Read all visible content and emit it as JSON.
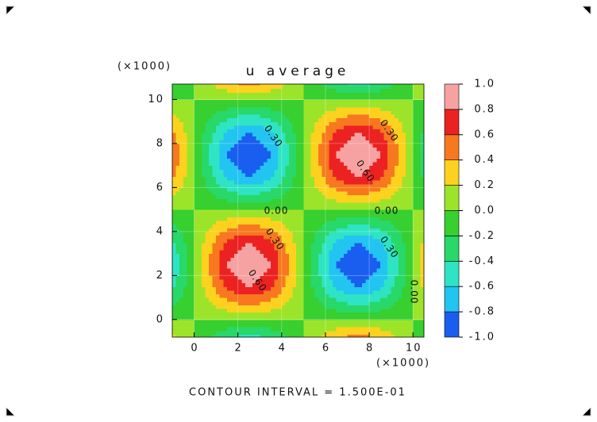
{
  "chart_data": {
    "type": "contour",
    "title": "u average",
    "y_multiplier_label": "(×1000)",
    "x_multiplier_label": "(×1000)",
    "footer": "CONTOUR INTERVAL = 1.500E-01",
    "x": [
      -1.5,
      -0.5,
      0.5,
      1.5,
      2.5,
      3.5,
      4.5,
      5.5,
      6.5,
      7.5,
      8.5,
      9.5,
      10.5
    ],
    "y": [
      -1.5,
      -0.5,
      0.5,
      1.5,
      2.5,
      3.5,
      4.5,
      5.5,
      6.5,
      7.5,
      8.5,
      9.5,
      10.5,
      11.5
    ],
    "z": [
      [
        0.66,
        0.25,
        -0.25,
        -0.66,
        -0.81,
        -0.66,
        -0.25,
        0.25,
        0.66,
        0.81,
        0.66,
        0.25,
        -0.25
      ],
      [
        0.25,
        0.1,
        -0.1,
        -0.25,
        -0.31,
        -0.25,
        -0.1,
        0.1,
        0.25,
        0.31,
        0.25,
        0.1,
        -0.1
      ],
      [
        -0.25,
        -0.1,
        0.1,
        0.25,
        0.31,
        0.25,
        0.1,
        -0.1,
        -0.25,
        -0.31,
        -0.25,
        -0.1,
        0.1
      ],
      [
        -0.66,
        -0.25,
        0.25,
        0.66,
        0.81,
        0.66,
        0.25,
        -0.25,
        -0.66,
        -0.81,
        -0.66,
        -0.25,
        0.25
      ],
      [
        -0.81,
        -0.31,
        0.31,
        0.81,
        1,
        0.81,
        0.31,
        -0.31,
        -0.81,
        -1,
        -0.81,
        -0.31,
        0.31
      ],
      [
        -0.66,
        -0.25,
        0.25,
        0.66,
        0.81,
        0.66,
        0.25,
        -0.25,
        -0.66,
        -0.81,
        -0.66,
        -0.25,
        0.25
      ],
      [
        -0.25,
        -0.1,
        0.1,
        0.25,
        0.31,
        0.25,
        0.1,
        -0.1,
        -0.25,
        -0.31,
        -0.25,
        -0.1,
        0.1
      ],
      [
        0.25,
        0.1,
        -0.1,
        -0.25,
        -0.31,
        -0.25,
        -0.1,
        0.1,
        0.25,
        0.31,
        0.25,
        0.1,
        -0.1
      ],
      [
        0.66,
        0.25,
        -0.25,
        -0.66,
        -0.81,
        -0.66,
        -0.25,
        0.25,
        0.66,
        0.81,
        0.66,
        0.25,
        -0.25
      ],
      [
        0.81,
        0.31,
        -0.31,
        -0.81,
        -1,
        -0.81,
        -0.31,
        0.31,
        0.81,
        1,
        0.81,
        0.31,
        -0.31
      ],
      [
        0.66,
        0.25,
        -0.25,
        -0.66,
        -0.81,
        -0.66,
        -0.25,
        0.25,
        0.66,
        0.81,
        0.66,
        0.25,
        -0.25
      ],
      [
        0.25,
        0.1,
        -0.1,
        -0.25,
        -0.31,
        -0.25,
        -0.1,
        0.1,
        0.25,
        0.31,
        0.25,
        0.1,
        -0.1
      ],
      [
        -0.25,
        -0.1,
        0.1,
        0.25,
        0.31,
        0.25,
        0.1,
        -0.1,
        -0.25,
        -0.31,
        -0.25,
        -0.1,
        0.1
      ],
      [
        -0.66,
        -0.25,
        0.25,
        0.66,
        0.81,
        0.66,
        0.25,
        -0.25,
        -0.66,
        -0.81,
        -0.66,
        -0.25,
        0.25
      ]
    ],
    "xlim": [
      -1,
      10.5
    ],
    "ylim": [
      -0.8,
      10.7
    ],
    "xticks": [
      0,
      2,
      4,
      6,
      8,
      10
    ],
    "yticks": [
      0,
      2,
      4,
      6,
      8,
      10
    ],
    "grid": true,
    "levels": [
      {
        "value": -1,
        "label": "-1.0"
      },
      {
        "value": -0.8,
        "label": "-0.8"
      },
      {
        "value": -0.6,
        "label": "-0.6"
      },
      {
        "value": -0.4,
        "label": "-0.4"
      },
      {
        "value": -0.2,
        "label": "-0.2"
      },
      {
        "value": 0,
        "label": "0.0"
      },
      {
        "value": 0.2,
        "label": "0.2"
      },
      {
        "value": 0.4,
        "label": "0.4"
      },
      {
        "value": 0.6,
        "label": "0.6"
      },
      {
        "value": 0.8,
        "label": "0.8"
      },
      {
        "value": 1,
        "label": "1.0"
      }
    ],
    "colors": [
      "#1a5ef0",
      "#22c4f2",
      "#2ee4c4",
      "#28d868",
      "#38cf30",
      "#9ce42a",
      "#fcd21e",
      "#f7781e",
      "#ec2222",
      "#f7a2a2"
    ],
    "contour_labels": [
      {
        "value": 0.3,
        "label": "0.30"
      },
      {
        "value": 0.3,
        "label": "0.30"
      },
      {
        "value": 0.3,
        "label": "0.30"
      },
      {
        "value": 0.3,
        "label": "0.30"
      },
      {
        "value": 0.6,
        "label": "0.60"
      },
      {
        "value": 0.6,
        "label": "0.60"
      },
      {
        "value": 0,
        "label": "0.00"
      },
      {
        "value": 0,
        "label": "0.00"
      },
      {
        "value": 0,
        "label": "0.00"
      }
    ]
  }
}
